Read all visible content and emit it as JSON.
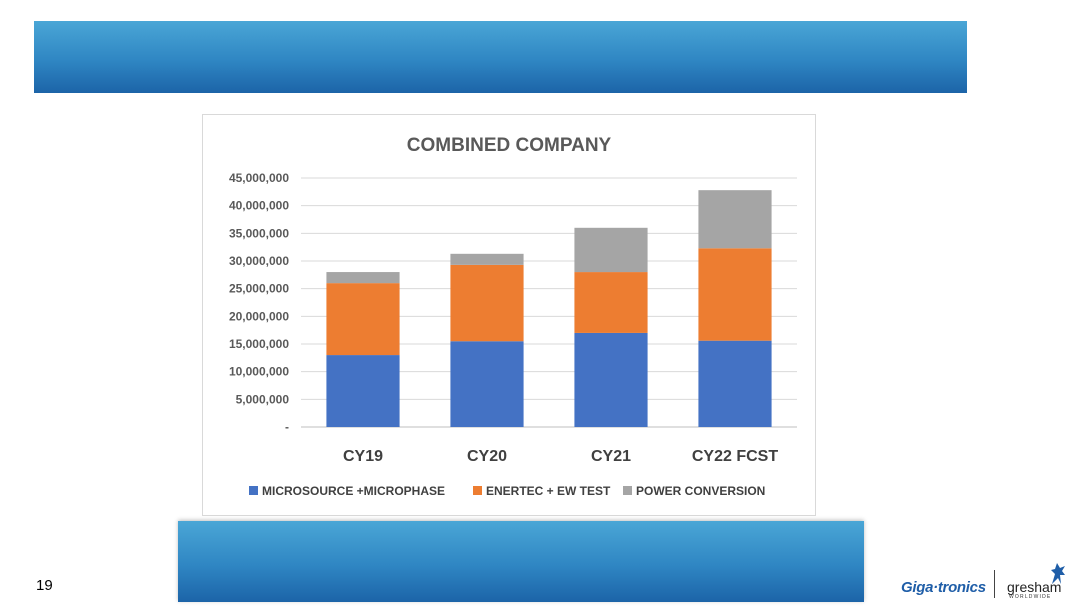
{
  "page": {
    "number": "19"
  },
  "logos": {
    "gigatronics": "Giga·tronics",
    "gresham": "gresham",
    "gresham_sub": "WORLDWIDE"
  },
  "colors": {
    "banner": "#2f86c3",
    "series_1": "#4472c4",
    "series_2": "#ed7d31",
    "series_3": "#a5a5a5"
  },
  "chart_data": {
    "type": "bar",
    "stacked": true,
    "title": "COMBINED COMPANY",
    "categories": [
      "CY19",
      "CY20",
      "CY21",
      "CY22 FCST"
    ],
    "series": [
      {
        "name": "MICROSOURCE +MICROPHASE",
        "color": "#4472c4",
        "values": [
          13000000,
          15500000,
          17000000,
          15600000
        ]
      },
      {
        "name": "ENERTEC + EW TEST",
        "color": "#ed7d31",
        "values": [
          13000000,
          13800000,
          11000000,
          16700000
        ]
      },
      {
        "name": "POWER CONVERSION",
        "color": "#a5a5a5",
        "values": [
          2000000,
          2000000,
          8000000,
          10500000
        ]
      }
    ],
    "yticks": [
      "-",
      "5,000,000",
      "10,000,000",
      "15,000,000",
      "20,000,000",
      "25,000,000",
      "30,000,000",
      "35,000,000",
      "40,000,000",
      "45,000,000"
    ],
    "ylim": [
      0,
      45000000
    ],
    "grid": true,
    "legend_position": "bottom"
  }
}
